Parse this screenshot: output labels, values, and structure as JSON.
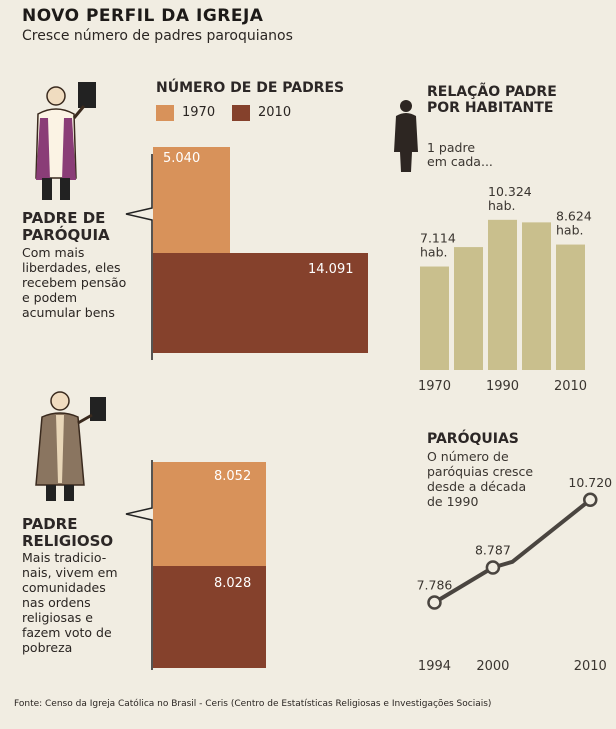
{
  "header": {
    "title": "NOVO PERFIL DA IGREJA",
    "subtitle": "Cresce número de padres paroquianos"
  },
  "colors": {
    "c1970": "#d8925a",
    "c2010": "#85412c",
    "habitant_bar": "#c9bf8d",
    "line": "#4a4540"
  },
  "chart_data": [
    {
      "type": "bar",
      "title": "NÚMERO DE DE PADRES",
      "legend": [
        "1970",
        "2010"
      ],
      "series": [
        {
          "name": "1970",
          "category": "Padre de paróquia",
          "value": 5040,
          "label": "5.040"
        },
        {
          "name": "2010",
          "category": "Padre de paróquia",
          "value": 14091,
          "label": "14.091"
        },
        {
          "name": "1970",
          "category": "Padre religioso",
          "value": 8052,
          "label": "8.052"
        },
        {
          "name": "2010",
          "category": "Padre religioso",
          "value": 8028,
          "label": "8.028"
        }
      ]
    },
    {
      "type": "bar",
      "title": "RELAÇÃO PADRE POR HABITANTE",
      "note": "1 padre em cada...",
      "ylim": [
        0,
        11000
      ],
      "bars": [
        {
          "year": 1970,
          "value": 7114
        },
        {
          "year": 1980,
          "value": 8450
        },
        {
          "year": 1990,
          "value": 10324
        },
        {
          "year": 2000,
          "value": 10150
        },
        {
          "year": 2010,
          "value": 8624
        }
      ],
      "labels": [
        {
          "year": 1970,
          "line1": "7.114",
          "line2": "hab."
        },
        {
          "year": 1990,
          "line1": "10.324",
          "line2": "hab."
        },
        {
          "year": 2010,
          "line1": "8.624",
          "line2": "hab."
        }
      ],
      "tick_labels": [
        "1970",
        "1990",
        "2010"
      ]
    },
    {
      "type": "line",
      "title": "PARÓQUIAS",
      "description": "O número de paróquias cresce desde a década de 1990",
      "points": [
        {
          "x": 1994,
          "y": 7786,
          "label": "7.786",
          "marker": true
        },
        {
          "x": 2000,
          "y": 8787,
          "label": "8.787",
          "marker": true
        },
        {
          "x": 2002,
          "y": 8950,
          "label": "",
          "marker": false
        },
        {
          "x": 2010,
          "y": 10720,
          "label": "10.720",
          "marker": true
        }
      ],
      "xlim": [
        1992,
        2011
      ],
      "ylim": [
        7000,
        11000
      ],
      "tick_labels": [
        "1994",
        "2000",
        "2010"
      ]
    }
  ],
  "parish_priest": {
    "title_line1": "PADRE DE",
    "title_line2": "PARÓQUIA",
    "desc": [
      "Com mais",
      "liberdades, eles",
      "recebem pensão",
      "e podem",
      "acumular bens"
    ]
  },
  "religious_priest": {
    "title_line1": "PADRE",
    "title_line2": "RELIGIOSO",
    "desc": [
      "Mais tradicio-",
      "nais, vivem em",
      "comunidades",
      "nas ordens",
      "religiosas e",
      "fazem voto de",
      "pobreza"
    ]
  },
  "ratio_section": {
    "title_line1": "RELAÇÃO PADRE",
    "title_line2": "POR HABITANTE",
    "note_line1": "1 padre",
    "note_line2": "em cada..."
  },
  "parishes": {
    "title": "PARÓQUIAS",
    "desc": [
      "O número de",
      "paróquias cresce",
      "desde a década",
      "de 1990"
    ]
  },
  "source": "Fonte: Censo da Igreja Católica no Brasil - Ceris (Centro de Estatísticas Religiosas e Investigações Sociais)"
}
